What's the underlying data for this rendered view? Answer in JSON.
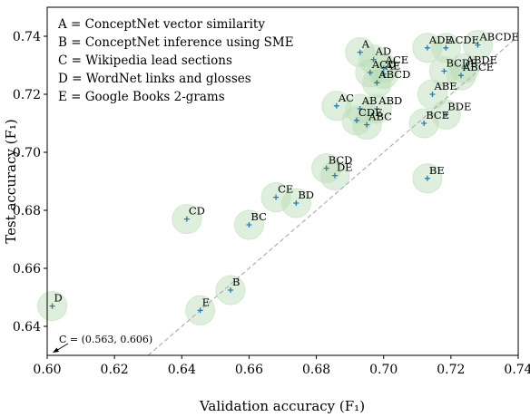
{
  "chart_data": {
    "type": "scatter",
    "xlabel": "Validation accuracy (F₁)",
    "ylabel": "Test accuracy (F₁)",
    "xlim": [
      0.6,
      0.74
    ],
    "ylim": [
      0.63,
      0.75
    ],
    "xticks": [
      "0.60",
      "0.62",
      "0.64",
      "0.66",
      "0.68",
      "0.70",
      "0.72",
      "0.74"
    ],
    "yticks": [
      "0.64",
      "0.66",
      "0.68",
      "0.70",
      "0.72",
      "0.74"
    ],
    "legend_location": "top-left",
    "legend": [
      "A = ConceptNet vector similarity",
      "B = ConceptNet inference using SME",
      "C = Wikipedia lead sections",
      "D = WordNet links and glosses",
      "E = Google Books 2-grams"
    ],
    "reference_line": {
      "style": "dashed",
      "color": "#b0b0b0",
      "label": "y = x"
    },
    "annotation": {
      "text": "C = (0.563, 0.606)",
      "arrow_direction": "down-left"
    },
    "colors": {
      "marker": "#2a7ab0",
      "circle_fill": "#b9dbb4",
      "circle_stroke": "#cfe8cc",
      "diagonal": "#b0b0b0"
    },
    "points": [
      {
        "label": "A",
        "x": 0.693,
        "y": 0.7345
      },
      {
        "label": "AD",
        "x": 0.697,
        "y": 0.732
      },
      {
        "label": "ACE",
        "x": 0.7,
        "y": 0.729
      },
      {
        "label": "ACD",
        "x": 0.696,
        "y": 0.7275
      },
      {
        "label": "AE",
        "x": 0.7,
        "y": 0.727
      },
      {
        "label": "ABCD",
        "x": 0.698,
        "y": 0.724
      },
      {
        "label": "ADE",
        "x": 0.713,
        "y": 0.736
      },
      {
        "label": "ACDE",
        "x": 0.7185,
        "y": 0.736
      },
      {
        "label": "ABCDE",
        "x": 0.728,
        "y": 0.737
      },
      {
        "label": "BCDE",
        "x": 0.718,
        "y": 0.728
      },
      {
        "label": "ABDE",
        "x": 0.724,
        "y": 0.729
      },
      {
        "label": "ABCE",
        "x": 0.723,
        "y": 0.7265
      },
      {
        "label": "ABE",
        "x": 0.7145,
        "y": 0.72
      },
      {
        "label": "AC",
        "x": 0.686,
        "y": 0.716
      },
      {
        "label": "AB",
        "x": 0.693,
        "y": 0.715
      },
      {
        "label": "ABD",
        "x": 0.698,
        "y": 0.715
      },
      {
        "label": "CDE",
        "x": 0.692,
        "y": 0.711
      },
      {
        "label": "ABC",
        "x": 0.695,
        "y": 0.7095
      },
      {
        "label": "BCE",
        "x": 0.712,
        "y": 0.71
      },
      {
        "label": "BDE",
        "x": 0.7185,
        "y": 0.713
      },
      {
        "label": "BCD",
        "x": 0.683,
        "y": 0.6945
      },
      {
        "label": "DE",
        "x": 0.6855,
        "y": 0.692
      },
      {
        "label": "BE",
        "x": 0.713,
        "y": 0.691
      },
      {
        "label": "CE",
        "x": 0.668,
        "y": 0.6845
      },
      {
        "label": "BD",
        "x": 0.674,
        "y": 0.6825
      },
      {
        "label": "BC",
        "x": 0.66,
        "y": 0.675
      },
      {
        "label": "CD",
        "x": 0.6415,
        "y": 0.677
      },
      {
        "label": "B",
        "x": 0.6545,
        "y": 0.6525
      },
      {
        "label": "E",
        "x": 0.6455,
        "y": 0.6455
      },
      {
        "label": "D",
        "x": 0.6015,
        "y": 0.647
      }
    ]
  }
}
